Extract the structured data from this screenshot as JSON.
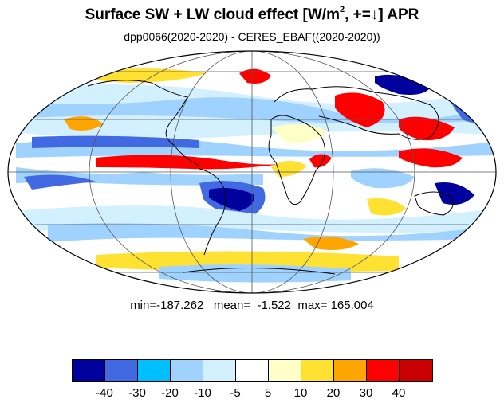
{
  "header": {
    "title_main": "Surface SW + LW cloud effect [W/m",
    "title_sup": "2",
    "title_rest": ", +=↓]  APR",
    "subtitle": "dpp0066(2020-2020) - CERES_EBAF((2020-2020))"
  },
  "stats": {
    "text": "min=-187.262   mean=  -1.522  max= 165.004",
    "min": -187.262,
    "mean": -1.522,
    "max": 165.004
  },
  "colorbar": {
    "colors": [
      "#00009c",
      "#4169e1",
      "#00bfff",
      "#a0d2ff",
      "#d2f0ff",
      "#ffffff",
      "#ffffc8",
      "#ffe132",
      "#ffa500",
      "#ff0000",
      "#c80000"
    ],
    "labels": [
      "-40",
      "-30",
      "-20",
      "-10",
      "-5",
      "5",
      "10",
      "20",
      "30",
      "40"
    ]
  },
  "map": {
    "projection": "mollweide",
    "gridlines": true,
    "coastlines": true
  }
}
